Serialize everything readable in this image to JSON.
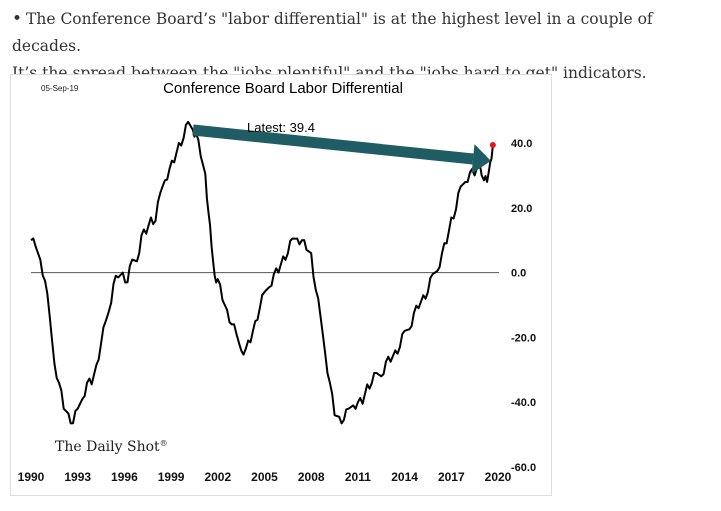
{
  "article": {
    "bullet": "•",
    "line1": "The Conference Board’s \"labor differential\" is at the highest level in a couple of decades.",
    "line2": "It’s the spread between the \"jobs plentiful\" and the \"jobs hard to get\" indicators."
  },
  "chart_data": {
    "type": "line",
    "title": "Conference Board Labor Differential",
    "date_label": "05-Sep-19",
    "annotation": "Latest:  39.4",
    "latest_value": 39.4,
    "watermark": "The Daily Shot",
    "watermark_mark": "®",
    "xlim": [
      1990,
      2020
    ],
    "ylim": [
      -60,
      40
    ],
    "x_ticks": [
      1990,
      1993,
      1996,
      1999,
      2002,
      2005,
      2008,
      2011,
      2014,
      2017,
      2020
    ],
    "y_ticks": [
      {
        "value": 40,
        "label": "40.0"
      },
      {
        "value": 20,
        "label": "20.0"
      },
      {
        "value": 0,
        "label": "0.0"
      },
      {
        "value": -20,
        "label": "-20.0"
      },
      {
        "value": -40,
        "label": "-40.0"
      },
      {
        "value": -60,
        "label": "-60.0"
      }
    ],
    "zero_line": true,
    "colors": {
      "line": "#000000",
      "arrow": "#1f5c63",
      "marker": "#e8141c"
    },
    "x": [
      1990.0,
      1990.3,
      1990.6,
      1990.9,
      1991.2,
      1991.5,
      1991.8,
      1992.1,
      1992.4,
      1992.7,
      1993.0,
      1993.3,
      1993.6,
      1993.9,
      1994.2,
      1994.5,
      1994.8,
      1995.0,
      1995.3,
      1995.6,
      1995.9,
      1996.2,
      1996.5,
      1996.8,
      1997.1,
      1997.4,
      1997.7,
      1998.0,
      1998.3,
      1998.6,
      1998.9,
      1999.2,
      1999.5,
      1999.8,
      2000.1,
      2000.4,
      2000.6,
      2000.9,
      2001.2,
      2001.4,
      2001.6,
      2001.8,
      2002.0,
      2002.3,
      2002.6,
      2002.9,
      2003.2,
      2003.5,
      2003.8,
      2004.1,
      2004.4,
      2004.7,
      2005.0,
      2005.3,
      2005.6,
      2005.9,
      2006.2,
      2006.5,
      2006.8,
      2007.1,
      2007.4,
      2007.7,
      2008.0,
      2008.3,
      2008.6,
      2008.9,
      2009.2,
      2009.5,
      2009.8,
      2010.1,
      2010.4,
      2010.7,
      2011.0,
      2011.3,
      2011.6,
      2011.9,
      2012.2,
      2012.5,
      2012.8,
      2013.1,
      2013.4,
      2013.7,
      2014.0,
      2014.3,
      2014.6,
      2014.9,
      2015.2,
      2015.5,
      2015.8,
      2016.1,
      2016.4,
      2016.7,
      2017.0,
      2017.3,
      2017.6,
      2017.9,
      2018.2,
      2018.5,
      2018.8,
      2019.1,
      2019.3,
      2019.5,
      2019.67
    ],
    "y": [
      10,
      8,
      4,
      -2,
      -15,
      -28,
      -35,
      -40,
      -44,
      -45,
      -42,
      -38,
      -36,
      -34,
      -30,
      -22,
      -16,
      -10,
      -4,
      0,
      0,
      -2,
      2,
      4,
      10,
      12,
      16,
      18,
      24,
      30,
      32,
      35,
      38,
      42,
      45,
      44,
      42,
      38,
      30,
      20,
      8,
      0,
      -4,
      -8,
      -13,
      -16,
      -20,
      -22,
      -24,
      -20,
      -15,
      -10,
      -8,
      -4,
      -2,
      0,
      4,
      8,
      10,
      12,
      10,
      8,
      4,
      -5,
      -15,
      -25,
      -35,
      -42,
      -45,
      -44,
      -42,
      -40,
      -42,
      -40,
      -36,
      -34,
      -32,
      -30,
      -28,
      -26,
      -24,
      -22,
      -20,
      -17,
      -14,
      -11,
      -8,
      -4,
      -1,
      2,
      6,
      10,
      15,
      20,
      25,
      28,
      30,
      32,
      34,
      30,
      28,
      35,
      39.4
    ]
  }
}
